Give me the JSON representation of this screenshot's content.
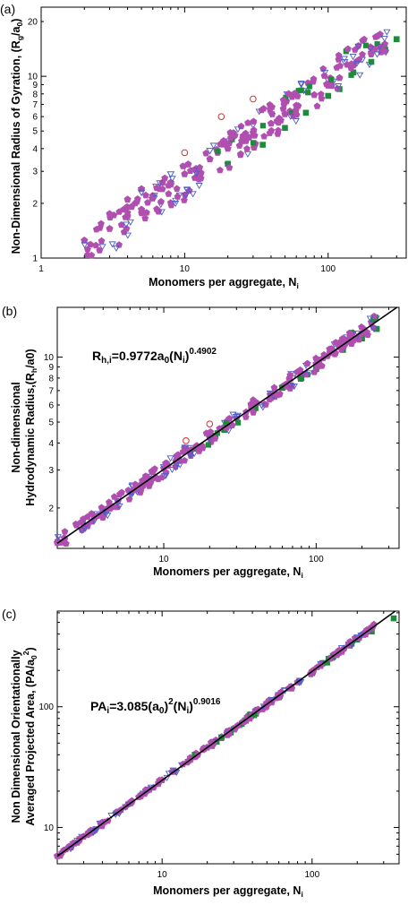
{
  "chart_data": [
    {
      "type": "scatter",
      "panel_label": "(a)",
      "xlabel": "Monomers per aggregate, N",
      "xlabel_sub": "i",
      "ylabel": "Non-Dimensional Radius of Gyration, (R",
      "ylabel_sub": "g",
      "ylabel_mid": "/a",
      "ylabel_sub2": "0",
      "ylabel_end": ")",
      "x_scale": "log",
      "y_scale": "log",
      "xlim": [
        1,
        350
      ],
      "ylim": [
        1,
        24
      ],
      "x_ticks": [
        "1",
        "10",
        "100"
      ],
      "y_ticks": [
        "1",
        "2",
        "3",
        "4",
        "5",
        "6",
        "7",
        "8",
        "9",
        "10",
        "20"
      ],
      "grid": false,
      "colors": {
        "magenta": "#b04fb0",
        "green": "#1e8b3a",
        "blue": "#4a5cc8",
        "red": "#d03030"
      },
      "series": [
        {
          "marker": "filled-pentagon-magenta",
          "x": [
            2,
            3,
            3,
            4,
            4,
            5,
            5,
            6,
            7,
            8,
            10,
            12,
            15,
            20,
            25,
            30,
            40,
            50,
            60,
            80,
            100,
            120,
            150,
            200,
            230
          ],
          "y": [
            1.25,
            1.45,
            1.75,
            1.7,
            2.1,
            1.85,
            2.4,
            2.2,
            2.6,
            2.6,
            2.9,
            3.1,
            3.5,
            4.0,
            4.4,
            4.9,
            5.5,
            6.2,
            6.9,
            7.9,
            8.9,
            9.8,
            11.5,
            13.5,
            17
          ]
        },
        {
          "marker": "filled-square-green",
          "x": [
            20,
            35,
            50,
            70,
            100,
            120,
            150,
            200,
            250,
            300
          ],
          "y": [
            3.3,
            4.2,
            5.2,
            6.3,
            7.8,
            8.5,
            10.5,
            12,
            14,
            16
          ]
        },
        {
          "marker": "open-blue",
          "x": [
            5,
            8,
            10,
            15,
            20,
            30,
            40,
            50,
            70,
            100,
            130
          ],
          "y": [
            2.3,
            2.9,
            3.2,
            3.9,
            4.4,
            5.4,
            6.2,
            7,
            8.3,
            9.5,
            12
          ]
        },
        {
          "marker": "open-circle-red",
          "x": [
            10,
            18,
            30
          ],
          "y": [
            3.8,
            6,
            7.5
          ]
        }
      ]
    },
    {
      "type": "scatter",
      "panel_label": "(b)",
      "xlabel": "Monomers per aggregate, N",
      "xlabel_sub": "i",
      "ylabel_line1": "Non-dimensional",
      "ylabel_line2": "Hydrodynamic Radius,(R",
      "ylabel_sub": "h",
      "ylabel_mid": "/a0)",
      "annotation": {
        "base": "R",
        "sub1": "h,i",
        "mid": "=0.9772a",
        "sub2": "0",
        "mid2": "(N",
        "sub3": "i",
        "end": ")",
        "sup": "0.4902"
      },
      "fit": {
        "a": 0.9772,
        "b": 0.4902
      },
      "x_scale": "log",
      "y_scale": "log",
      "xlim": [
        2,
        350
      ],
      "ylim": [
        1.3,
        17
      ],
      "x_ticks": [
        "10",
        "100"
      ],
      "y_ticks": [
        "2",
        "3",
        "4",
        "5",
        "6",
        "7",
        "8",
        "9",
        "10"
      ],
      "grid": false,
      "series": [
        {
          "marker": "filled-pentagon-magenta",
          "x": [
            2,
            3,
            3,
            4,
            4,
            5,
            6,
            7,
            8,
            10,
            12,
            15,
            20,
            25,
            30,
            40,
            50,
            60,
            80,
            100,
            130,
            150,
            200,
            230
          ],
          "y": [
            1.38,
            1.67,
            1.62,
            1.9,
            1.95,
            2.15,
            2.37,
            2.55,
            2.74,
            3.05,
            3.3,
            3.7,
            4.25,
            4.75,
            5.2,
            6.0,
            6.7,
            7.3,
            8.4,
            9.3,
            10.6,
            11.4,
            12.8,
            14.5
          ]
        },
        {
          "marker": "filled-square-green",
          "x": [
            25,
            40,
            60,
            80,
            100,
            150,
            200,
            250
          ],
          "y": [
            4.6,
            5.8,
            7.2,
            8.0,
            8.8,
            10.8,
            12.2,
            13.5
          ]
        },
        {
          "marker": "open-blue",
          "x": [
            5,
            8,
            10,
            15,
            20,
            30,
            50,
            70
          ],
          "y": [
            2.2,
            2.8,
            3.1,
            3.8,
            4.4,
            5.3,
            6.8,
            8
          ]
        },
        {
          "marker": "open-circle-red",
          "x": [
            14,
            20
          ],
          "y": [
            4.1,
            4.9
          ]
        }
      ]
    },
    {
      "type": "scatter",
      "panel_label": "(c)",
      "xlabel": "Monomers per aggregate, N",
      "xlabel_sub": "i",
      "ylabel_line1": "Non Dimensional Orientationally",
      "ylabel_line2": "Averaged Projected Area, (PA/a",
      "ylabel_sub": "0",
      "ylabel_sup": "2",
      "ylabel_end": ")",
      "annotation": {
        "base": "PA",
        "sub1": "i",
        "mid": "=3.085(a",
        "sub2": "0",
        "sup1": "2",
        "mid2": "(N",
        "sub3": "i",
        "end": ")",
        "sup": "0.9016"
      },
      "fit": {
        "a": 3.085,
        "b": 0.9016
      },
      "x_scale": "log",
      "y_scale": "log",
      "xlim": [
        2,
        380
      ],
      "ylim": [
        5,
        620
      ],
      "x_ticks": [
        "10",
        "100"
      ],
      "y_ticks": [
        "10",
        "100"
      ],
      "grid": false,
      "series": [
        {
          "marker": "filled-pentagon-magenta",
          "x": [
            2,
            3,
            4,
            5,
            6,
            7,
            8,
            10,
            12,
            15,
            20,
            25,
            30,
            40,
            50,
            60,
            80,
            100,
            130,
            150,
            200,
            240
          ],
          "y": [
            5.8,
            8.4,
            11,
            13.3,
            15.7,
            17.9,
            20.3,
            24.7,
            29,
            35.5,
            46,
            56,
            66,
            86,
            105,
            124,
            160,
            195,
            250,
            285,
            367,
            430
          ]
        },
        {
          "marker": "filled-square-green",
          "x": [
            30,
            60,
            100,
            150,
            200,
            250,
            350
          ],
          "y": [
            65,
            120,
            190,
            280,
            360,
            420,
            540
          ]
        },
        {
          "marker": "open-blue",
          "x": [
            8,
            15,
            25,
            50
          ],
          "y": [
            20,
            35,
            56,
            104
          ]
        }
      ]
    }
  ]
}
